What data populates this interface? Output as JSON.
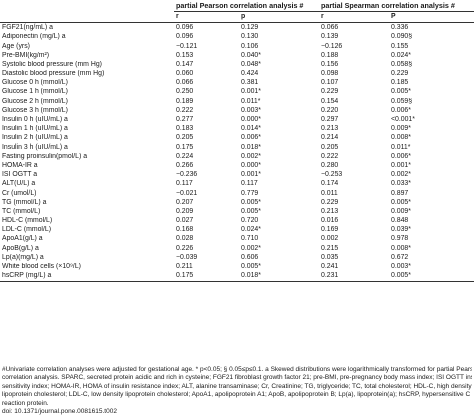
{
  "table": {
    "group_headers": [
      "partial Pearson correlation analysis #",
      "partial Spearman correlation analysis #"
    ],
    "sub_headers": [
      "r",
      "p",
      "r",
      "P"
    ],
    "rows": [
      {
        "label": "FGF21(ng/mL) a",
        "pr": "0.096",
        "pp": "0.129",
        "sr": "0.066",
        "sp": "0.336"
      },
      {
        "label": "Adiponectin (mg/L) a",
        "pr": "0.096",
        "pp": "0.130",
        "sr": "0.139",
        "sp": "0.090§"
      },
      {
        "label": "Age (yrs)",
        "pr": "−0.121",
        "pp": "0.106",
        "sr": "−0.126",
        "sp": "0.155"
      },
      {
        "label": "Pre-BMI(kg/m²)",
        "pr": "0.153",
        "pp": "0.040*",
        "sr": "0.188",
        "sp": "0.024*"
      },
      {
        "label": "Systolic blood pressure (mm Hg)",
        "pr": "0.147",
        "pp": "0.048*",
        "sr": "0.156",
        "sp": "0.058§"
      },
      {
        "label": "Diastolic blood pressure (mm Hg)",
        "pr": "0.060",
        "pp": "0.424",
        "sr": "0.098",
        "sp": "0.229"
      },
      {
        "label": "Glucose 0 h (mmol/L)",
        "pr": "0.066",
        "pp": "0.381",
        "sr": "0.107",
        "sp": "0.185"
      },
      {
        "label": "Glucose 1 h (mmol/L)",
        "pr": "0.250",
        "pp": "0.001*",
        "sr": "0.229",
        "sp": "0.005*"
      },
      {
        "label": "Glucose 2 h (mmol/L)",
        "pr": "0.189",
        "pp": "0.011*",
        "sr": "0.154",
        "sp": "0.059§"
      },
      {
        "label": "Glucose 3 h (mmol/L)",
        "pr": "0.222",
        "pp": "0.003*",
        "sr": "0.220",
        "sp": "0.006*"
      },
      {
        "label": "Insulin 0 h (uIU/mL) a",
        "pr": "0.277",
        "pp": "0.000*",
        "sr": "0.297",
        "sp": "<0.001*"
      },
      {
        "label": "Insulin 1 h (uIU/mL) a",
        "pr": "0.183",
        "pp": "0.014*",
        "sr": "0.213",
        "sp": "0.009*"
      },
      {
        "label": "Insulin 2 h (uIU/mL) a",
        "pr": "0.205",
        "pp": "0.006*",
        "sr": "0.214",
        "sp": "0.008*"
      },
      {
        "label": "Insulin 3 h (uIU/mL) a",
        "pr": "0.175",
        "pp": "0.018*",
        "sr": "0.205",
        "sp": "0.011*"
      },
      {
        "label": "Fasting proinsulin(pmol/L) a",
        "pr": "0.224",
        "pp": "0.002*",
        "sr": "0.222",
        "sp": "0.006*"
      },
      {
        "label": "HOMA-IR a",
        "pr": "0.266",
        "pp": "0.000*",
        "sr": "0.280",
        "sp": "0.001*"
      },
      {
        "label": "ISI OGTT a",
        "pr": "−0.236",
        "pp": "0.001*",
        "sr": "−0.253",
        "sp": "0.002*"
      },
      {
        "label": "ALT(U/L) a",
        "pr": "0.117",
        "pp": "0.117",
        "sr": "0.174",
        "sp": "0.033*"
      },
      {
        "label": "Cr (umol/L)",
        "pr": "−0.021",
        "pp": "0.779",
        "sr": "0.011",
        "sp": "0.897"
      },
      {
        "label": "TG (mmol/L) a",
        "pr": "0.207",
        "pp": "0.005*",
        "sr": "0.229",
        "sp": "0.005*"
      },
      {
        "label": "TC (mmol/L)",
        "pr": "0.209",
        "pp": "0.005*",
        "sr": "0.213",
        "sp": "0.009*"
      },
      {
        "label": "HDL-C (mmol/L)",
        "pr": "0.027",
        "pp": "0.720",
        "sr": "0.016",
        "sp": "0.848"
      },
      {
        "label": "LDL-C (mmol/L)",
        "pr": "0.168",
        "pp": "0.024*",
        "sr": "0.169",
        "sp": "0.039*"
      },
      {
        "label": "ApoA1(g/L) a",
        "pr": "0.028",
        "pp": "0.710",
        "sr": "0.002",
        "sp": "0.978"
      },
      {
        "label": "ApoB(g/L) a",
        "pr": "0.226",
        "pp": "0.002*",
        "sr": "0.215",
        "sp": "0.008*"
      },
      {
        "label": "Lp(a)(mg/L) a",
        "pr": "−0.039",
        "pp": "0.606",
        "sr": "0.035",
        "sp": "0.672"
      },
      {
        "label": "White blood cells (×10⁹/L)",
        "pr": "0.211",
        "pp": "0.005*",
        "sr": "0.241",
        "sp": "0.003*"
      },
      {
        "label": "hsCRP (mg/L) a",
        "pr": "0.175",
        "pp": "0.018*",
        "sr": "0.231",
        "sp": "0.005*"
      }
    ]
  },
  "footnote": {
    "lines": [
      "#Univariate correlation analyses were adjusted for gestational age. * p<0.05; § 0.05≤p≤0.1. a Skewed distributions were logarithmically transformed for partial Pearson",
      "correlation analysis. SPARC, secreted protein acidic and rich in cysteine; FGF21 fibroblast growth factor 21; pre-BMI, pre-pregnancy body mass index; ISI OGTT insulin-",
      "sensitivity index; HOMA-IR, HOMA of insulin resistance index; ALT, alanine transaminase; Cr, Creatinine; TG, triglyceride; TC, total cholesterol; HDL-C, high density",
      "lipoprotein cholesterol; LDL-C, low density lipoprotein cholesterol; ApoA1, apolipoprotein A1; ApoB, apolipoprotein B; Lp(a), lipoprotein(a); hsCRP, hypersensitive C",
      "reaction protein.",
      "doi: 10.1371/journal.pone.0081615.t002"
    ]
  }
}
